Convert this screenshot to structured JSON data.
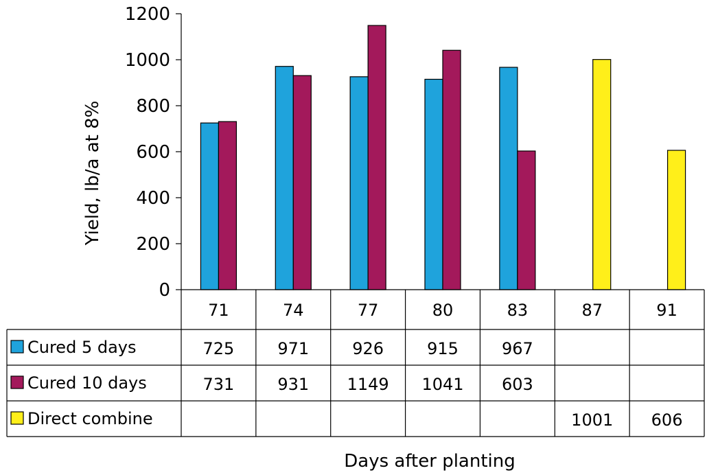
{
  "chart_data": {
    "type": "bar",
    "title": "",
    "xlabel": "Days after planting",
    "ylabel": "Yield, lb/a at 8%",
    "ylim": [
      0,
      1200
    ],
    "yticks": [
      "0",
      "200",
      "400",
      "600",
      "800",
      "1000",
      "1200"
    ],
    "categories": [
      "71",
      "74",
      "77",
      "80",
      "83",
      "87",
      "91"
    ],
    "series": [
      {
        "name": "Cured 5 days",
        "color": "#1fa3dc",
        "values": [
          725,
          971,
          926,
          915,
          967,
          null,
          null
        ],
        "labels": [
          "725",
          "971",
          "926",
          "915",
          "967",
          "",
          ""
        ]
      },
      {
        "name": "Cured 10 days",
        "color": "#a3195b",
        "values": [
          731,
          931,
          1149,
          1041,
          603,
          null,
          null
        ],
        "labels": [
          "731",
          "931",
          "1149",
          "1041",
          "603",
          "",
          ""
        ]
      },
      {
        "name": "Direct combine",
        "color": "#ffef1a",
        "values": [
          null,
          null,
          null,
          null,
          null,
          1001,
          606
        ],
        "labels": [
          "",
          "",
          "",
          "",
          "",
          "1001",
          "606"
        ]
      }
    ],
    "grid": false,
    "legend": "data-table"
  }
}
